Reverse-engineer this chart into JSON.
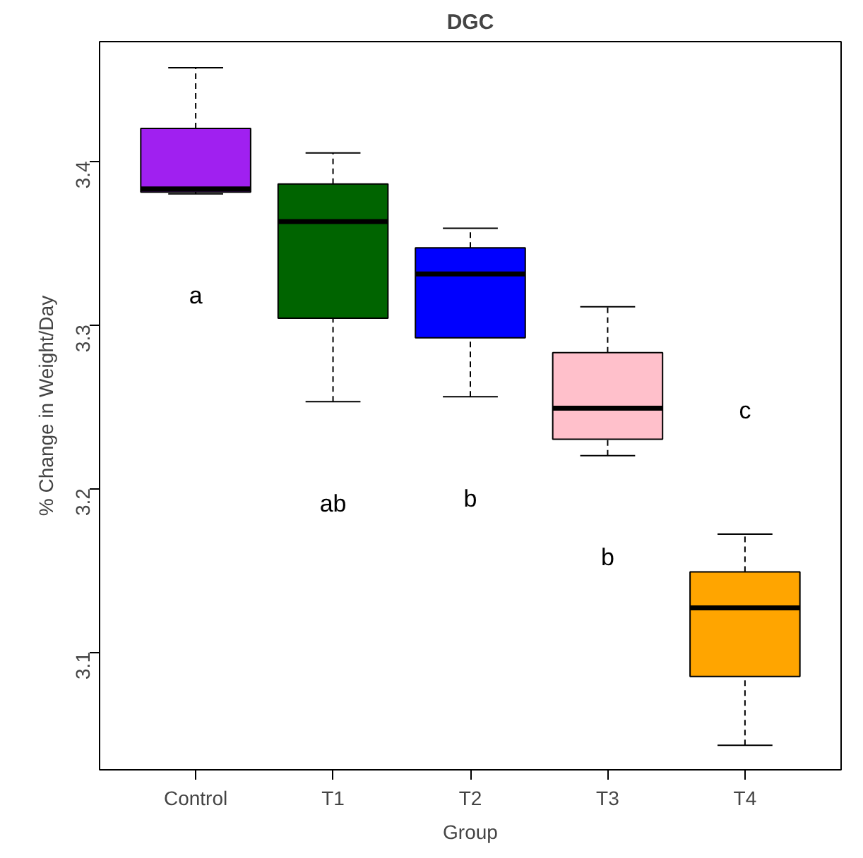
{
  "chart_data": {
    "type": "box",
    "title": "DGC",
    "xlabel": "Group",
    "ylabel": "% Change in Weight/Day",
    "categories": [
      "Control",
      "T1",
      "T2",
      "T3",
      "T4"
    ],
    "colors": [
      "#a020f0",
      "#006400",
      "#0000ff",
      "#ffc0cb",
      "#ffa500"
    ],
    "boxes": [
      {
        "low": 3.38,
        "q1": 3.381,
        "median": 3.383,
        "q3": 3.42,
        "high": 3.457
      },
      {
        "low": 3.253,
        "q1": 3.304,
        "median": 3.363,
        "q3": 3.386,
        "high": 3.405
      },
      {
        "low": 3.256,
        "q1": 3.292,
        "median": 3.331,
        "q3": 3.347,
        "high": 3.359
      },
      {
        "low": 3.22,
        "q1": 3.23,
        "median": 3.249,
        "q3": 3.283,
        "high": 3.311
      },
      {
        "low": 3.043,
        "q1": 3.085,
        "median": 3.127,
        "q3": 3.149,
        "high": 3.172
      }
    ],
    "ylim": [
      3.028,
      3.473
    ],
    "yticks": [
      3.1,
      3.2,
      3.3,
      3.4
    ],
    "grid": false,
    "annotations": [
      "a",
      "ab",
      "b",
      "b",
      "c"
    ]
  }
}
